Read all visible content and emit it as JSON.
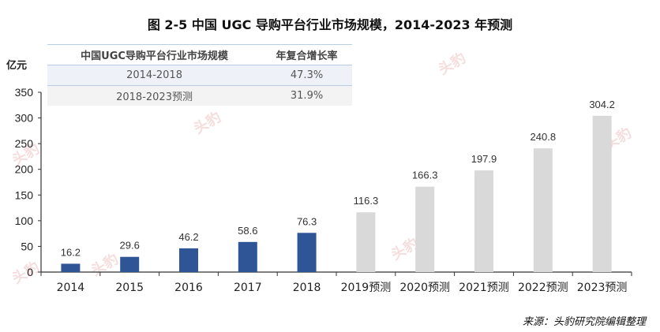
{
  "title": "图 2-5 中国 UGC 导购平台行业市场规模，2014-2023 年预测",
  "unit_label": "亿元",
  "cagr_table": {
    "headers": [
      "中国UGC导购平台行业市场规模",
      "年复合增长率"
    ],
    "rows": [
      {
        "period": "2014-2018",
        "rate": "47.3%"
      },
      {
        "period": "2018-2023预测",
        "rate": "31.9%"
      }
    ]
  },
  "source": "来源：头豹研究院编辑整理",
  "colors": {
    "actual": "#2f5597",
    "forecast": "#d9d9d9",
    "watermark": "#e8a0a0"
  },
  "chart_data": {
    "type": "bar",
    "title": "中国 UGC 导购平台行业市场规模，2014-2023 年预测",
    "xlabel": "",
    "ylabel": "亿元",
    "ylim": [
      0,
      350
    ],
    "yticks": [
      0,
      50,
      100,
      150,
      200,
      250,
      300,
      350
    ],
    "grid": false,
    "legend": null,
    "categories": [
      "2014",
      "2015",
      "2016",
      "2017",
      "2018",
      "2019预测",
      "2020预测",
      "2021预测",
      "2022预测",
      "2023预测"
    ],
    "values": [
      16.2,
      29.6,
      46.2,
      58.6,
      76.3,
      116.3,
      166.3,
      197.9,
      240.8,
      304.2
    ],
    "labels": [
      "16.2",
      "29.6",
      "46.2",
      "58.6",
      "76.3",
      "116.3",
      "166.3",
      "197.9",
      "240.8",
      "304.2"
    ],
    "series_type": [
      "actual",
      "actual",
      "actual",
      "actual",
      "actual",
      "forecast",
      "forecast",
      "forecast",
      "forecast",
      "forecast"
    ]
  }
}
